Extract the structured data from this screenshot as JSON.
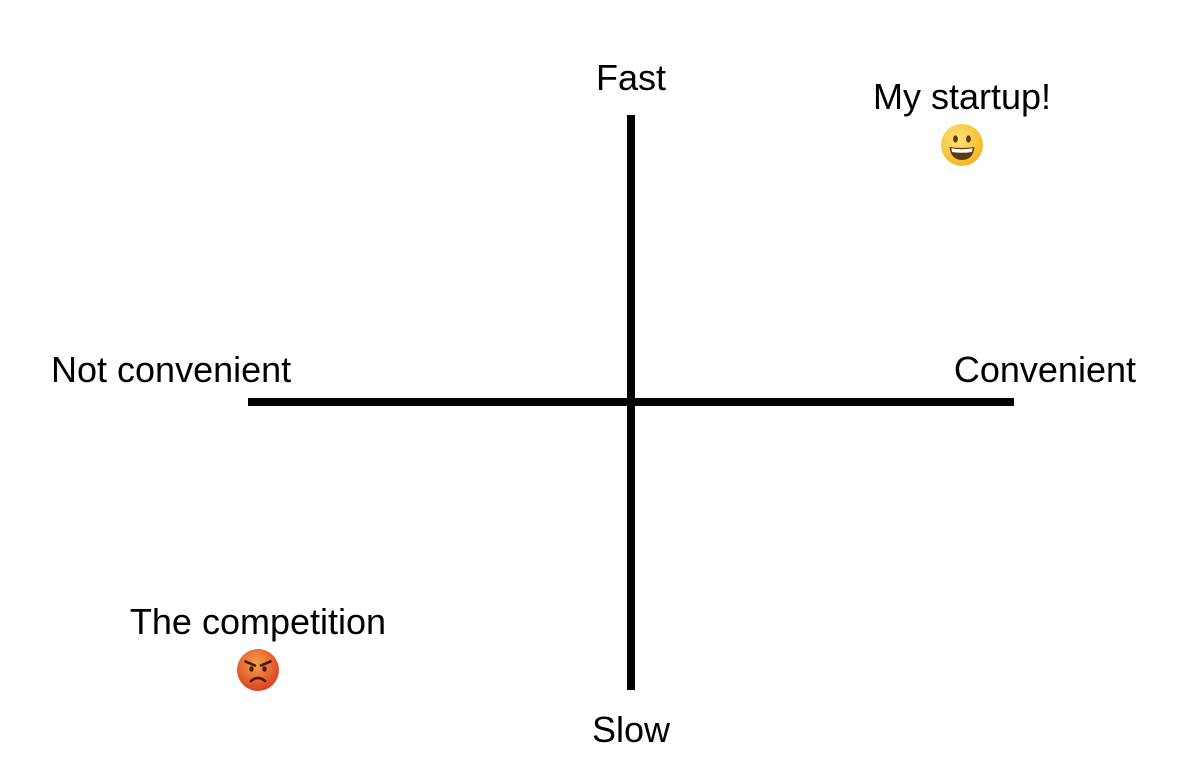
{
  "axes": {
    "top": "Fast",
    "bottom": "Slow",
    "left": "Not convenient",
    "right": "Convenient"
  },
  "items": [
    {
      "label": "My startup!",
      "quadrant": "top-right",
      "icon": "grinning-face-icon",
      "color": "#F5C02E"
    },
    {
      "label": "The competition",
      "quadrant": "bottom-left",
      "icon": "angry-face-icon",
      "color": "#E8532A"
    }
  ],
  "colors": {
    "axis": "#000000",
    "background": "#FFFFFF"
  }
}
